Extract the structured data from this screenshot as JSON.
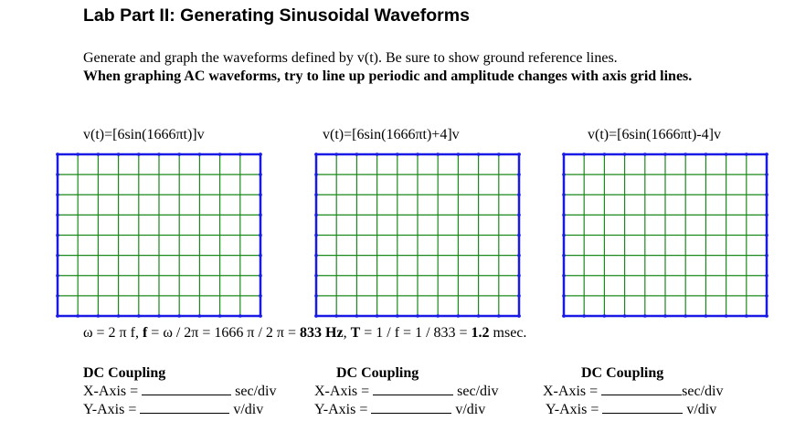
{
  "title": "Lab Part II: Generating Sinusoidal Waveforms",
  "intro": {
    "line1": "Generate and graph the waveforms defined by v(t). Be sure to show ground reference lines.",
    "line2": "When graphing AC waveforms, try to line up periodic and amplitude changes with axis grid lines."
  },
  "graphs": [
    {
      "equation": "v(t)=[6sin(1666πt)]v"
    },
    {
      "equation": "v(t)=[6sin(1666πt)+4]v"
    },
    {
      "equation": "v(t)=[6sin(1666πt)-4]v"
    }
  ],
  "grid_spec": {
    "columns": 10,
    "rows": 8,
    "outer_color": "#1a1ae6",
    "inner_color": "#1a8a1a"
  },
  "calc": {
    "part1": "ω = 2 π f, ",
    "part2": "f",
    "part3": " = ω / 2π = 1666 π / 2 π = ",
    "part4": "833 Hz",
    "part5": ", ",
    "part6": "T",
    "part7": " = 1 / f = 1 / 833 = ",
    "part8": "1.2",
    "part9": " msec."
  },
  "settings": [
    {
      "title": "DC Coupling",
      "x_label": "X-Axis =",
      "x_unit": "sec/div",
      "y_label": "Y-Axis =",
      "y_unit": "v/div"
    },
    {
      "title": "DC Coupling",
      "x_label": "X-Axis =",
      "x_unit": "sec/div",
      "y_label": "Y-Axis =",
      "y_unit": "v/div"
    },
    {
      "title": "DC Coupling",
      "x_label": "X-Axis =",
      "x_unit": "sec/div",
      "y_label": "Y-Axis =",
      "y_unit": "v/div"
    }
  ]
}
